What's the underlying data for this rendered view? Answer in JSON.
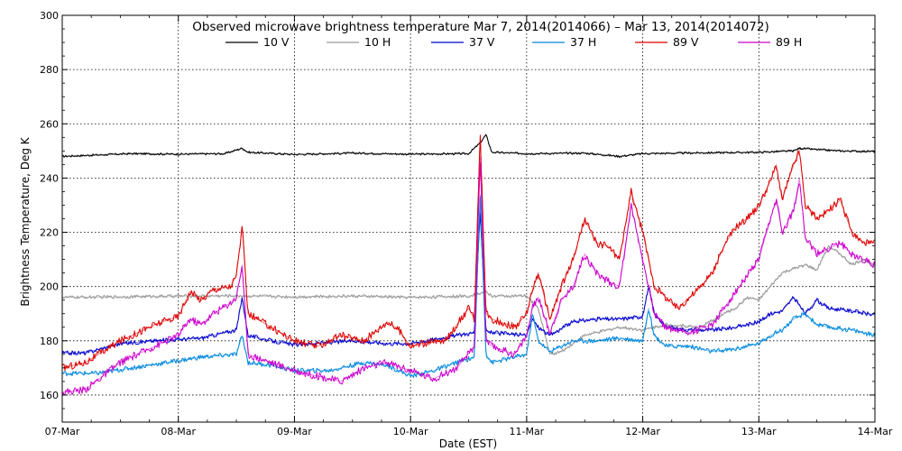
{
  "chart_data": {
    "type": "line",
    "title": "Observed microwave brightness temperature Mar  7, 2014(2014066) – Mar 13, 2014(2014072)",
    "xlabel": "Date (EST)",
    "ylabel": "Brightness Temperature, Deg K",
    "xlim": [
      0,
      7
    ],
    "ylim": [
      150,
      300
    ],
    "x_ticks": [
      {
        "value": 0,
        "label": "07-Mar"
      },
      {
        "value": 1,
        "label": "08-Mar"
      },
      {
        "value": 2,
        "label": "09-Mar"
      },
      {
        "value": 3,
        "label": "10-Mar"
      },
      {
        "value": 4,
        "label": "11-Mar"
      },
      {
        "value": 5,
        "label": "12-Mar"
      },
      {
        "value": 6,
        "label": "13-Mar"
      },
      {
        "value": 7,
        "label": "14-Mar"
      }
    ],
    "y_ticks": [
      {
        "value": 160,
        "label": "160"
      },
      {
        "value": 180,
        "label": "180"
      },
      {
        "value": 200,
        "label": "200"
      },
      {
        "value": 220,
        "label": "220"
      },
      {
        "value": 240,
        "label": "240"
      },
      {
        "value": 260,
        "label": "260"
      },
      {
        "value": 280,
        "label": "280"
      },
      {
        "value": 300,
        "label": "300"
      }
    ],
    "grid": "dotted",
    "legend_position": "top",
    "series": [
      {
        "name": "10 V",
        "color": "#000000",
        "jitter": 0.4,
        "x": [
          0,
          0.3,
          0.6,
          1.0,
          1.4,
          1.55,
          1.6,
          2.0,
          2.5,
          3.0,
          3.5,
          3.6,
          3.65,
          3.7,
          4.0,
          4.5,
          4.8,
          5.0,
          5.5,
          6.0,
          6.3,
          6.35,
          6.5,
          6.7,
          7.0
        ],
        "y": [
          248,
          248.5,
          249,
          248.8,
          249,
          251,
          249.5,
          248.7,
          249.2,
          248.8,
          249,
          253,
          256,
          249.5,
          249,
          249.2,
          248,
          249,
          249.3,
          249.5,
          250,
          251,
          250.5,
          250,
          249.8
        ]
      },
      {
        "name": "10 H",
        "color": "#999999",
        "jitter": 0.6,
        "x": [
          0,
          0.5,
          1.0,
          1.5,
          2.0,
          2.5,
          3.0,
          3.5,
          3.6,
          3.65,
          3.7,
          4.0,
          4.1,
          4.2,
          4.3,
          4.5,
          4.8,
          5.0,
          5.2,
          5.5,
          5.7,
          5.8,
          5.9,
          6.0,
          6.2,
          6.4,
          6.5,
          6.6,
          6.7,
          6.8,
          6.9,
          7.0
        ],
        "y": [
          196,
          196.2,
          196.5,
          196.6,
          196.2,
          196.5,
          196,
          196.5,
          197.5,
          198,
          196.5,
          196.5,
          192,
          175,
          176,
          182,
          185,
          184,
          186,
          185,
          190,
          192,
          196,
          195,
          205,
          208,
          206,
          215,
          212,
          208,
          210,
          208
        ]
      },
      {
        "name": "37 V",
        "color": "#0000cc",
        "jitter": 0.8,
        "x": [
          0,
          0.2,
          0.5,
          0.8,
          1.0,
          1.2,
          1.4,
          1.5,
          1.55,
          1.6,
          1.8,
          2.0,
          2.5,
          2.8,
          3.0,
          3.2,
          3.4,
          3.55,
          3.6,
          3.65,
          3.7,
          4.0,
          4.05,
          4.1,
          4.2,
          4.4,
          4.6,
          4.8,
          5.0,
          5.05,
          5.1,
          5.2,
          5.4,
          5.6,
          5.8,
          6.0,
          6.1,
          6.2,
          6.3,
          6.4,
          6.5,
          6.6,
          6.8,
          7.0
        ],
        "y": [
          175.5,
          175.5,
          179,
          180,
          180.5,
          181,
          183,
          184,
          196,
          182,
          180,
          178.5,
          180,
          179,
          179,
          180.5,
          182,
          183,
          228,
          184,
          183,
          182,
          188,
          185,
          182,
          187,
          188,
          188,
          189,
          200,
          190,
          185,
          184,
          184,
          185,
          187,
          190,
          191,
          196,
          190,
          195,
          192,
          191,
          189.5
        ]
      },
      {
        "name": "37 H",
        "color": "#0088dd",
        "jitter": 0.9,
        "x": [
          0,
          0.3,
          0.6,
          0.9,
          1.2,
          1.5,
          1.55,
          1.6,
          1.8,
          2.0,
          2.3,
          2.6,
          2.8,
          3.0,
          3.2,
          3.4,
          3.55,
          3.6,
          3.65,
          3.7,
          4.0,
          4.05,
          4.1,
          4.2,
          4.4,
          4.6,
          4.8,
          5.0,
          5.05,
          5.1,
          5.2,
          5.4,
          5.6,
          5.8,
          6.0,
          6.1,
          6.2,
          6.3,
          6.4,
          6.5,
          6.6,
          6.8,
          7.0
        ],
        "y": [
          168,
          168,
          170,
          172,
          174,
          175,
          182,
          172,
          171,
          169,
          169,
          172,
          171,
          167,
          169,
          172,
          174,
          234,
          175,
          172,
          175,
          190,
          180,
          176,
          180,
          180,
          181,
          180,
          192,
          182,
          178,
          178,
          176,
          177,
          179,
          182,
          184,
          188,
          190,
          186,
          185,
          184,
          182
        ]
      },
      {
        "name": "89 V",
        "color": "#dd0000",
        "jitter": 1.4,
        "x": [
          0,
          0.2,
          0.5,
          0.8,
          1.0,
          1.1,
          1.2,
          1.3,
          1.45,
          1.5,
          1.55,
          1.6,
          1.8,
          2.0,
          2.2,
          2.4,
          2.6,
          2.8,
          2.9,
          3.0,
          3.1,
          3.3,
          3.5,
          3.55,
          3.6,
          3.65,
          3.7,
          3.9,
          4.0,
          4.05,
          4.1,
          4.2,
          4.3,
          4.4,
          4.5,
          4.6,
          4.7,
          4.8,
          4.9,
          5.0,
          5.1,
          5.2,
          5.3,
          5.4,
          5.5,
          5.6,
          5.7,
          5.8,
          5.9,
          6.0,
          6.1,
          6.15,
          6.2,
          6.3,
          6.35,
          6.4,
          6.5,
          6.6,
          6.7,
          6.8,
          6.9,
          7.0
        ],
        "y": [
          170,
          172,
          180,
          186,
          189,
          198,
          195,
          199,
          200,
          204,
          222,
          190,
          185,
          180,
          178,
          182,
          180,
          187,
          184,
          178,
          179,
          180,
          192,
          188,
          256,
          190,
          188,
          185,
          190,
          199,
          205,
          188,
          200,
          210,
          225,
          216,
          215,
          210,
          235,
          220,
          200,
          196,
          192,
          196,
          200,
          205,
          215,
          222,
          225,
          230,
          239,
          245,
          232,
          245,
          250,
          230,
          225,
          228,
          232,
          220,
          216,
          216
        ]
      },
      {
        "name": "89 H",
        "color": "#cc00cc",
        "jitter": 1.4,
        "x": [
          0,
          0.2,
          0.5,
          0.8,
          1.0,
          1.1,
          1.2,
          1.3,
          1.45,
          1.5,
          1.55,
          1.6,
          1.8,
          2.0,
          2.2,
          2.4,
          2.6,
          2.8,
          3.0,
          3.2,
          3.4,
          3.55,
          3.6,
          3.65,
          3.7,
          3.9,
          4.0,
          4.05,
          4.1,
          4.2,
          4.3,
          4.4,
          4.5,
          4.6,
          4.7,
          4.8,
          4.9,
          5.0,
          5.1,
          5.2,
          5.4,
          5.6,
          5.8,
          6.0,
          6.1,
          6.15,
          6.2,
          6.3,
          6.35,
          6.4,
          6.5,
          6.6,
          6.7,
          6.8,
          6.9,
          7.0
        ],
        "y": [
          161,
          162,
          172,
          178,
          182,
          188,
          186,
          190,
          194,
          196,
          208,
          175,
          172,
          169,
          167,
          165,
          170,
          172,
          169,
          166,
          170,
          178,
          248,
          180,
          178,
          175,
          182,
          192,
          196,
          183,
          195,
          200,
          212,
          205,
          202,
          200,
          230,
          210,
          190,
          185,
          183,
          186,
          198,
          210,
          225,
          232,
          220,
          228,
          240,
          218,
          212,
          214,
          216,
          212,
          210,
          208
        ]
      }
    ]
  }
}
